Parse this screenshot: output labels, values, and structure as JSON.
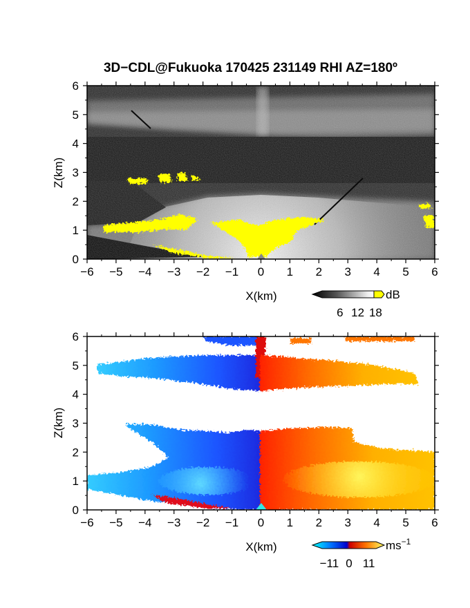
{
  "title": "3D−CDL@Fukuoka 170425 231149 RHI AZ=180º",
  "chart_data": [
    {
      "type": "heatmap",
      "field": "reflectivity",
      "xlabel": "X(km)",
      "ylabel": "Z(km)",
      "xlim": [
        -6,
        6
      ],
      "ylim": [
        0,
        6
      ],
      "xticks": [
        "−6",
        "−5",
        "−4",
        "−3",
        "−2",
        "−1",
        "0",
        "1",
        "2",
        "3",
        "4",
        "5",
        "6"
      ],
      "yticks": [
        "0",
        "1",
        "2",
        "3",
        "4",
        "5",
        "6"
      ],
      "colorbar": {
        "unit": "dB",
        "ticks": [
          "6",
          "12",
          "18"
        ],
        "tick_values": [
          6,
          12,
          18
        ],
        "range": [
          0,
          20
        ],
        "colors": [
          "#000000",
          "#555555",
          "#aaaaaa",
          "#ffffff",
          "#ffff00"
        ]
      },
      "features": [
        {
          "name": "high-return core",
          "x": [
            -1.2,
            1.6
          ],
          "z": [
            0,
            1.4
          ],
          "value": 18
        },
        {
          "name": "low return streaks",
          "x": [
            -5.8,
            -2.4
          ],
          "z": [
            1.0,
            1.4
          ],
          "value": 18
        },
        {
          "name": "upper cloud return",
          "x": [
            -4.8,
            -2.0
          ],
          "z": [
            2.6,
            2.9
          ],
          "value": 18
        },
        {
          "name": "upper grey layer",
          "x": [
            -6,
            6
          ],
          "z": [
            4.2,
            5.6
          ],
          "value": 10
        }
      ]
    },
    {
      "type": "heatmap",
      "field": "doppler velocity",
      "xlabel": "X(km)",
      "ylabel": "Z(km)",
      "xlim": [
        -6,
        6
      ],
      "ylim": [
        0,
        6
      ],
      "xticks": [
        "−6",
        "−5",
        "−4",
        "−3",
        "−2",
        "−1",
        "0",
        "1",
        "2",
        "3",
        "4",
        "5",
        "6"
      ],
      "yticks": [
        "0",
        "1",
        "2",
        "3",
        "4",
        "5",
        "6"
      ],
      "colorbar": {
        "unit": "ms",
        "unit_exponent": "−1",
        "ticks": [
          "−11",
          "0",
          "11"
        ],
        "tick_values": [
          -11,
          0,
          11
        ],
        "range": [
          -15,
          15
        ],
        "colors": [
          "#00ffff",
          "#0066ff",
          "#0000cc",
          "#cc0000",
          "#ff5500",
          "#ffcc00",
          "#ffff66"
        ]
      },
      "features": [
        {
          "name": "lower negative region",
          "x": [
            -6,
            0
          ],
          "z": [
            0,
            2.7
          ],
          "value": -9
        },
        {
          "name": "lower positive region",
          "x": [
            0,
            6
          ],
          "z": [
            0,
            2.8
          ],
          "value": 9
        },
        {
          "name": "upper negative layer",
          "x": [
            -5.8,
            0
          ],
          "z": [
            4.3,
            6.0
          ],
          "value": -6
        },
        {
          "name": "upper positive layer",
          "x": [
            0,
            6
          ],
          "z": [
            4.2,
            6.0
          ],
          "value": 7
        }
      ]
    }
  ]
}
